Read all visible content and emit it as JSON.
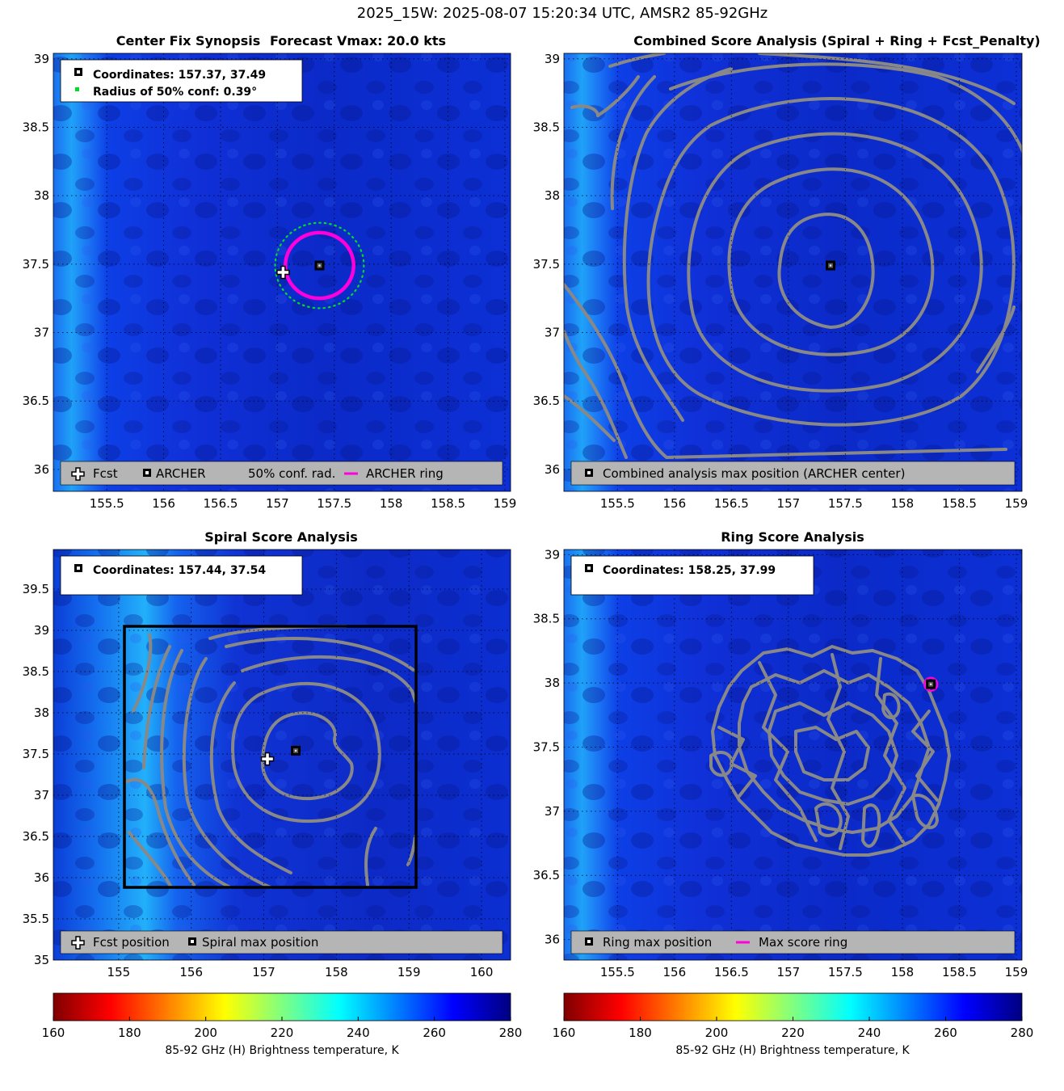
{
  "figure_title": "2025_15W: 2025-08-07 15:20:34 UTC, AMSR2 85-92GHz",
  "colors": {
    "archer_ring": "#ff00dd",
    "conf_ring": "#00dd22",
    "contour": "#888888",
    "legend_bg": "#b5b5b5",
    "colormap": [
      "#800000",
      "#ff0000",
      "#ff8000",
      "#ffff00",
      "#80ff80",
      "#00ffff",
      "#0080ff",
      "#0000ff",
      "#000080"
    ]
  },
  "chart_data": [
    {
      "panel": "center_fix_synopsis",
      "type": "heatmap",
      "title": "Center Fix Synopsis",
      "subtitle": "Forecast Vmax: 20.0 kts",
      "xlim": [
        155.03,
        159.05
      ],
      "ylim": [
        35.84,
        39.04
      ],
      "xticks": [
        155.5,
        156,
        156.5,
        157,
        157.5,
        158,
        158.5,
        159
      ],
      "xtick_labels": [
        "155.5",
        "156",
        "156.5",
        "157",
        "157.5",
        "158",
        "158.5",
        "159"
      ],
      "yticks": [
        36,
        36.5,
        37,
        37.5,
        38,
        38.5,
        39
      ],
      "ytick_labels": [
        "36",
        "36.5",
        "37",
        "37.5",
        "38",
        "38.5",
        "39"
      ],
      "info_lines": [
        "Coordinates: 157.37, 37.49",
        "Radius of 50% conf: 0.39°"
      ],
      "archer_center": [
        157.37,
        37.49
      ],
      "forecast_position": [
        157.05,
        37.44
      ],
      "archer_ring_radius_deg": 0.3,
      "conf_radius_deg": 0.39,
      "legend": [
        "Fcst",
        "ARCHER",
        "50% conf. rad.",
        "ARCHER ring"
      ]
    },
    {
      "panel": "combined_score_analysis",
      "type": "heatmap",
      "title": "Combined Score Analysis (Spiral + Ring + Fcst_Penalty)",
      "xlim": [
        155.03,
        159.05
      ],
      "ylim": [
        35.84,
        39.04
      ],
      "xticks": [
        155.5,
        156,
        156.5,
        157,
        157.5,
        158,
        158.5,
        159
      ],
      "xtick_labels": [
        "155.5",
        "156",
        "156.5",
        "157",
        "157.5",
        "158",
        "158.5",
        "159"
      ],
      "yticks": [
        36,
        36.5,
        37,
        37.5,
        38,
        38.5,
        39
      ],
      "ytick_labels": [
        "36",
        "36.5",
        "37",
        "37.5",
        "38",
        "38.5",
        "39"
      ],
      "max_position": [
        157.37,
        37.49
      ],
      "legend": [
        "Combined analysis max position (ARCHER center)"
      ]
    },
    {
      "panel": "spiral_score_analysis",
      "type": "heatmap",
      "title": "Spiral Score Analysis",
      "xlim": [
        154.1,
        160.4
      ],
      "ylim": [
        35.0,
        39.98
      ],
      "xticks": [
        155,
        156,
        157,
        158,
        159,
        160
      ],
      "xtick_labels": [
        "155",
        "156",
        "157",
        "158",
        "159",
        "160"
      ],
      "yticks": [
        35,
        35.5,
        36,
        36.5,
        37,
        37.5,
        38,
        38.5,
        39,
        39.5
      ],
      "ytick_labels": [
        "35",
        "35.5",
        "36",
        "36.5",
        "37",
        "37.5",
        "38",
        "38.5",
        "39",
        "39.5"
      ],
      "info_lines": [
        "Coordinates: 157.44, 37.54"
      ],
      "max_position": [
        157.44,
        37.54
      ],
      "forecast_position": [
        157.05,
        37.44
      ],
      "search_box": [
        155.05,
        35.85,
        159.08,
        39.05
      ],
      "legend": [
        "Fcst position",
        "Spiral max position"
      ]
    },
    {
      "panel": "ring_score_analysis",
      "type": "heatmap",
      "title": "Ring Score Analysis",
      "xlim": [
        155.03,
        159.05
      ],
      "ylim": [
        35.84,
        39.04
      ],
      "xticks": [
        155.5,
        156,
        156.5,
        157,
        157.5,
        158,
        158.5,
        159
      ],
      "xtick_labels": [
        "155.5",
        "156",
        "156.5",
        "157",
        "157.5",
        "158",
        "158.5",
        "159"
      ],
      "yticks": [
        36,
        36.5,
        37,
        37.5,
        38,
        38.5,
        39
      ],
      "ytick_labels": [
        "36",
        "36.5",
        "37",
        "37.5",
        "38",
        "38.5",
        "39"
      ],
      "info_lines": [
        "Coordinates: 158.25, 37.99"
      ],
      "max_position": [
        158.25,
        37.99
      ],
      "legend": [
        "Ring max position",
        "Max score ring"
      ]
    }
  ],
  "colorbars": [
    {
      "label": "85-92 GHz (H) Brightness temperature, K",
      "range": [
        160,
        280
      ],
      "ticks": [
        "160",
        "180",
        "200",
        "220",
        "240",
        "260",
        "280"
      ]
    },
    {
      "label": "85-92 GHz (H) Brightness temperature, K",
      "range": [
        160,
        280
      ],
      "ticks": [
        "160",
        "180",
        "200",
        "220",
        "240",
        "260",
        "280"
      ]
    }
  ]
}
